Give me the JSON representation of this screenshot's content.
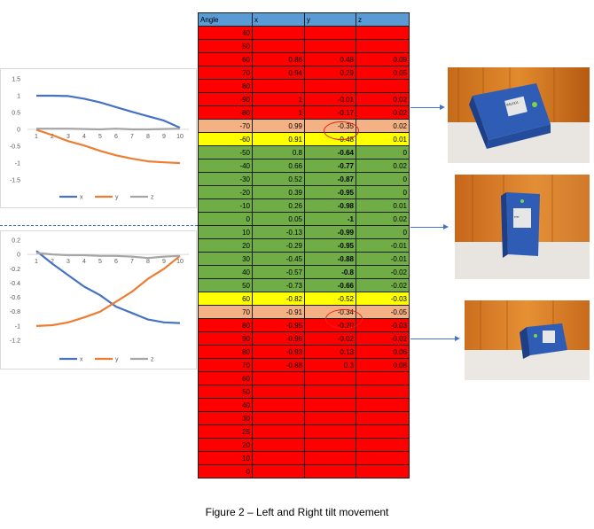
{
  "table": {
    "headers": [
      "Angle",
      "x",
      "y",
      "z"
    ],
    "rows": [
      {
        "angle": "40",
        "x": "",
        "y": "",
        "z": "",
        "color": "red"
      },
      {
        "angle": "50",
        "x": "",
        "y": "",
        "z": "",
        "color": "red"
      },
      {
        "angle": "60",
        "x": "0.86",
        "y": "0.48",
        "z": "0.09",
        "color": "red"
      },
      {
        "angle": "70",
        "x": "0.94",
        "y": "0.29",
        "z": "0.05",
        "color": "red"
      },
      {
        "angle": "80",
        "x": "",
        "y": "",
        "z": "",
        "color": "red"
      },
      {
        "angle": "-90",
        "x": "1",
        "y": "-0.01",
        "z": "0.02",
        "color": "red"
      },
      {
        "angle": "-80",
        "x": "1",
        "y": "-0.17",
        "z": "0.02",
        "color": "red"
      },
      {
        "angle": "-70",
        "x": "0.99",
        "y": "-0.35",
        "z": "0.02",
        "color": "peach"
      },
      {
        "angle": "-60",
        "x": "0.91",
        "y": "-0.48",
        "z": "0.01",
        "color": "yellow"
      },
      {
        "angle": "-50",
        "x": "0.8",
        "y": "-0.64",
        "z": "0",
        "color": "green",
        "ybold": true
      },
      {
        "angle": "-40",
        "x": "0.66",
        "y": "-0.77",
        "z": "0.02",
        "color": "green",
        "ybold": true
      },
      {
        "angle": "-30",
        "x": "0.52",
        "y": "-0.87",
        "z": "0",
        "color": "green",
        "ybold": true
      },
      {
        "angle": "-20",
        "x": "0.39",
        "y": "-0.95",
        "z": "0",
        "color": "green",
        "ybold": true
      },
      {
        "angle": "-10",
        "x": "0.26",
        "y": "-0.98",
        "z": "0.01",
        "color": "green",
        "ybold": true
      },
      {
        "angle": "0",
        "x": "0.05",
        "y": "-1",
        "z": "0.02",
        "color": "green",
        "ybold": true
      },
      {
        "angle": "10",
        "x": "-0.13",
        "y": "-0.99",
        "z": "0",
        "color": "green",
        "ybold": true
      },
      {
        "angle": "20",
        "x": "-0.29",
        "y": "-0.95",
        "z": "-0.01",
        "color": "green",
        "ybold": true
      },
      {
        "angle": "30",
        "x": "-0.45",
        "y": "-0.88",
        "z": "-0.01",
        "color": "green",
        "ybold": true
      },
      {
        "angle": "40",
        "x": "-0.57",
        "y": "-0.8",
        "z": "-0.02",
        "color": "green",
        "ybold": true
      },
      {
        "angle": "50",
        "x": "-0.73",
        "y": "-0.66",
        "z": "-0.02",
        "color": "green",
        "ybold": true
      },
      {
        "angle": "60",
        "x": "-0.82",
        "y": "-0.52",
        "z": "-0.03",
        "color": "yellow"
      },
      {
        "angle": "70",
        "x": "-0.91",
        "y": "-0.34",
        "z": "-0.05",
        "color": "peach"
      },
      {
        "angle": "80",
        "x": "-0.95",
        "y": "-0.20",
        "z": "-0.03",
        "color": "red"
      },
      {
        "angle": "90",
        "x": "-0.96",
        "y": "-0.02",
        "z": "-0.02",
        "color": "red"
      },
      {
        "angle": "80",
        "x": "-0.93",
        "y": "0.13",
        "z": "0.06",
        "color": "red"
      },
      {
        "angle": "70",
        "x": "-0.88",
        "y": "0.3",
        "z": "0.08",
        "color": "red"
      },
      {
        "angle": "60",
        "x": "",
        "y": "",
        "z": "",
        "color": "red"
      },
      {
        "angle": "50",
        "x": "",
        "y": "",
        "z": "",
        "color": "red"
      },
      {
        "angle": "40",
        "x": "",
        "y": "",
        "z": "",
        "color": "red"
      },
      {
        "angle": "30",
        "x": "",
        "y": "",
        "z": "",
        "color": "red"
      },
      {
        "angle": "25",
        "x": "",
        "y": "",
        "z": "",
        "color": "red"
      },
      {
        "angle": "20",
        "x": "",
        "y": "",
        "z": "",
        "color": "red"
      },
      {
        "angle": "10",
        "x": "",
        "y": "",
        "z": "",
        "color": "red"
      },
      {
        "angle": "0",
        "x": "",
        "y": "",
        "z": "",
        "color": "red"
      }
    ],
    "colors": {
      "red": "#ff0000",
      "peach": "#f4b183",
      "yellow": "#ffff00",
      "green": "#70ad47",
      "header": "#5b9bd5"
    }
  },
  "chart_data": [
    {
      "type": "line",
      "x": [
        1,
        2,
        3,
        4,
        5,
        6,
        7,
        8,
        9,
        10
      ],
      "series": [
        {
          "name": "x",
          "values": [
            1,
            1,
            0.99,
            0.91,
            0.8,
            0.66,
            0.52,
            0.39,
            0.26,
            0.05
          ],
          "color": "#4472c4"
        },
        {
          "name": "y",
          "values": [
            -0.01,
            -0.17,
            -0.35,
            -0.48,
            -0.64,
            -0.77,
            -0.87,
            -0.95,
            -0.98,
            -1
          ],
          "color": "#ed7d31"
        },
        {
          "name": "z",
          "values": [
            0.02,
            0.02,
            0.02,
            0.01,
            0,
            0.02,
            0,
            0,
            0.01,
            0.02
          ],
          "color": "#a5a5a5"
        }
      ],
      "ylim": [
        -1.5,
        1.5
      ],
      "yticks": [
        "1.5",
        "1",
        "0.5",
        "0",
        "-0.5",
        "-1",
        "-1.5"
      ],
      "xticks": [
        "1",
        "2",
        "3",
        "4",
        "5",
        "6",
        "7",
        "8",
        "9",
        "10"
      ],
      "grid": false,
      "legend": "bottom"
    },
    {
      "type": "line",
      "x": [
        1,
        2,
        3,
        4,
        5,
        6,
        7,
        8,
        9,
        10
      ],
      "series": [
        {
          "name": "x",
          "values": [
            0.05,
            -0.13,
            -0.29,
            -0.45,
            -0.57,
            -0.73,
            -0.82,
            -0.91,
            -0.95,
            -0.96
          ],
          "color": "#4472c4"
        },
        {
          "name": "y",
          "values": [
            -1,
            -0.99,
            -0.95,
            -0.88,
            -0.8,
            -0.66,
            -0.52,
            -0.34,
            -0.2,
            -0.02
          ],
          "color": "#ed7d31"
        },
        {
          "name": "z",
          "values": [
            0.02,
            0,
            -0.01,
            -0.01,
            -0.02,
            -0.02,
            -0.03,
            -0.05,
            -0.03,
            -0.02
          ],
          "color": "#a5a5a5"
        }
      ],
      "ylim": [
        -1.2,
        0.2
      ],
      "yticks": [
        "0.2",
        "0",
        "-0.2",
        "-0.4",
        "-0.6",
        "-0.8",
        "-1",
        "-1.2"
      ],
      "xticks": [
        "1",
        "2",
        "3",
        "4",
        "5",
        "6",
        "7",
        "8",
        "9",
        "10"
      ],
      "grid": false,
      "legend": "bottom"
    }
  ],
  "photos": [
    {
      "label": "IMU001 ·"
    },
    {
      "label": "▪▪▪▪"
    },
    {
      "label": ""
    }
  ],
  "caption": "Figure 2 – Left and Right tilt movement"
}
